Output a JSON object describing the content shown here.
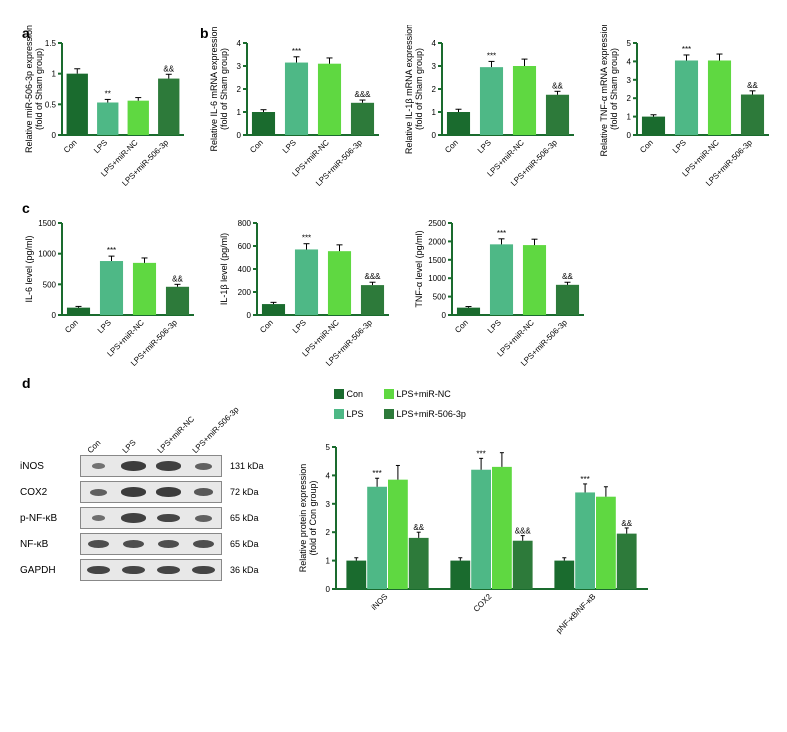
{
  "colors": {
    "con": "#1a6b2e",
    "lps": "#4eb886",
    "lps_nc": "#5fd841",
    "lps_506": "#2d7a3a",
    "axis": "#1a6b2e"
  },
  "categories4": [
    "Con",
    "LPS",
    "LPS+miR-NC",
    "LPS+miR-506-3p"
  ],
  "panel_a": {
    "title": "Relative miR-506-3p expression\n(fold of Sham group)",
    "ylim": [
      0,
      1.5
    ],
    "ytick": 0.5,
    "values": [
      1.0,
      0.53,
      0.56,
      0.92
    ],
    "errors": [
      0.08,
      0.05,
      0.05,
      0.07
    ],
    "sig": [
      "",
      "**",
      "",
      "&&"
    ]
  },
  "panel_b": [
    {
      "title": "Relative IL-6 mRNA expression\n(fold of Sham group)",
      "ylim": [
        0,
        4
      ],
      "ytick": 1,
      "values": [
        1.0,
        3.15,
        3.1,
        1.4
      ],
      "errors": [
        0.1,
        0.25,
        0.25,
        0.12
      ],
      "sig": [
        "",
        "***",
        "",
        "&&&"
      ]
    },
    {
      "title": "Relative IL-1β mRNA expression\n(fold of Sham group)",
      "ylim": [
        0,
        4
      ],
      "ytick": 1,
      "values": [
        1.0,
        2.95,
        3.0,
        1.75
      ],
      "errors": [
        0.12,
        0.25,
        0.3,
        0.15
      ],
      "sig": [
        "",
        "***",
        "",
        "&&"
      ]
    },
    {
      "title": "Relative TNF-α mRNA expression\n(fold of Sham group)",
      "ylim": [
        0,
        5
      ],
      "ytick": 1,
      "values": [
        1.0,
        4.05,
        4.05,
        2.2
      ],
      "errors": [
        0.1,
        0.3,
        0.35,
        0.2
      ],
      "sig": [
        "",
        "***",
        "",
        "&&"
      ]
    }
  ],
  "panel_c": [
    {
      "title": "IL-6 level (pg/ml)",
      "ylim": [
        0,
        1500
      ],
      "ytick": 500,
      "values": [
        120,
        880,
        850,
        460
      ],
      "errors": [
        20,
        80,
        80,
        40
      ],
      "sig": [
        "",
        "***",
        "",
        "&&"
      ]
    },
    {
      "title": "IL-1β level (pg/ml)",
      "ylim": [
        0,
        800
      ],
      "ytick": 200,
      "values": [
        95,
        570,
        555,
        260
      ],
      "errors": [
        15,
        50,
        55,
        25
      ],
      "sig": [
        "",
        "***",
        "",
        "&&&"
      ]
    },
    {
      "title": "TNF-α level (pg/ml)",
      "ylim": [
        0,
        2500
      ],
      "ytick": 500,
      "values": [
        200,
        1920,
        1900,
        820
      ],
      "errors": [
        30,
        150,
        160,
        70
      ],
      "sig": [
        "",
        "***",
        "",
        "&&"
      ]
    }
  ],
  "panel_d_blots": [
    {
      "name": "iNOS",
      "kda": "131 kDa",
      "bands": [
        0.3,
        0.9,
        0.85,
        0.5
      ]
    },
    {
      "name": "COX2",
      "kda": "72 kDa",
      "bands": [
        0.5,
        0.9,
        0.9,
        0.6
      ]
    },
    {
      "name": "p-NF-κB",
      "kda": "65 kDa",
      "bands": [
        0.35,
        0.85,
        0.8,
        0.5
      ]
    },
    {
      "name": "NF-κB",
      "kda": "65 kDa",
      "bands": [
        0.7,
        0.7,
        0.7,
        0.7
      ]
    },
    {
      "name": "GAPDH",
      "kda": "36 kDa",
      "bands": [
        0.8,
        0.8,
        0.8,
        0.8
      ]
    }
  ],
  "panel_d_chart": {
    "title": "Relative protein expression\n(fold of Con group)",
    "ylim": [
      0,
      5
    ],
    "ytick": 1,
    "groups": [
      "iNOS",
      "COX2",
      "pNF-κB/NF-κB"
    ],
    "legend": [
      "Con",
      "LPS",
      "LPS+miR-NC",
      "LPS+miR-506-3p"
    ],
    "series": [
      {
        "values": [
          1.0,
          3.6,
          3.85,
          1.8
        ],
        "errors": [
          0.1,
          0.3,
          0.5,
          0.2
        ],
        "sig": [
          "",
          "***",
          "",
          "&&"
        ]
      },
      {
        "values": [
          1.0,
          4.2,
          4.3,
          1.7
        ],
        "errors": [
          0.1,
          0.4,
          0.5,
          0.18
        ],
        "sig": [
          "",
          "***",
          "",
          "&&&"
        ]
      },
      {
        "values": [
          1.0,
          3.4,
          3.25,
          1.95
        ],
        "errors": [
          0.1,
          0.3,
          0.35,
          0.2
        ],
        "sig": [
          "",
          "***",
          "",
          "&&"
        ]
      }
    ]
  }
}
